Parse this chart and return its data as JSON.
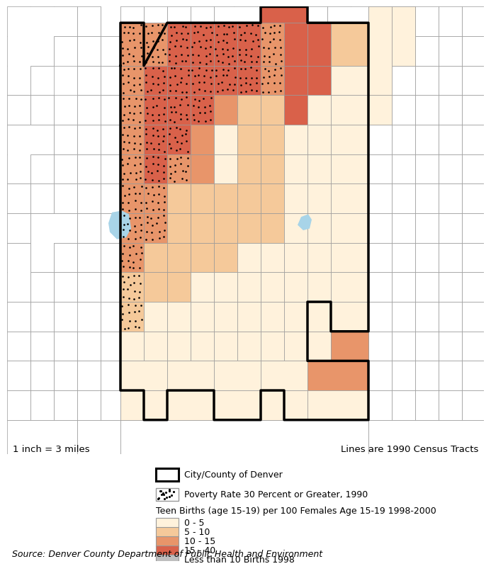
{
  "scale_text": "1 inch = 3 miles",
  "census_text": "Lines are 1990 Census Tracts",
  "source_text": "Source: Denver County Department of Public Health and Environment",
  "legend_city": "City/County of Denver",
  "legend_poverty": "Poverty Rate 30 Percent or Greater, 1990",
  "legend_header": "Teen Births (age 15-19) per 100 Females Age 15-19 1998-2000",
  "legend_0_5": "0 - 5",
  "legend_5_10": "5 - 10",
  "legend_10_15": "10 - 15",
  "legend_15_40": "15 - 40",
  "legend_gray": "Less than 10 Births 1998",
  "background_color": "#FFFFFF",
  "census_line_color": "#999999",
  "boundary_color": "#000000",
  "color_0_5": "#FFF2DC",
  "color_5_10": "#F5C99A",
  "color_10_15": "#E8956A",
  "color_15_40": "#D9614A",
  "color_gray": "#BEBEBE",
  "color_water": "#A8D4E8",
  "color_outside": "#FFFFFF"
}
